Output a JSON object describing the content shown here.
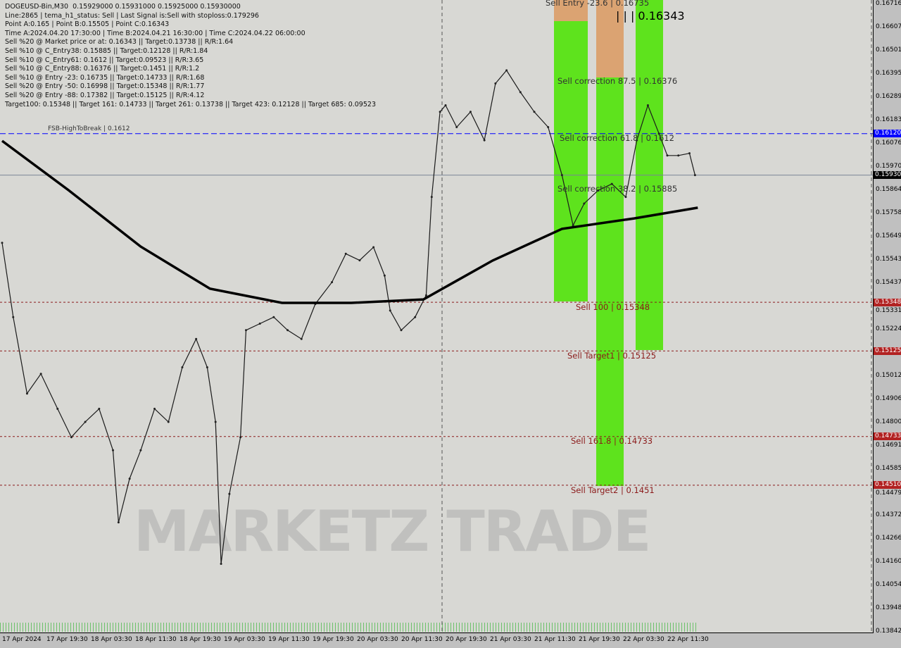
{
  "info_panel": {
    "lines": [
      "DOGEUSD-Bin,M30  0.15929000 0.15931000 0.15925000 0.15930000",
      "Line:2865 | tema_h1_status: Sell | Last Signal is:Sell with stoploss:0.179296",
      "Point A:0.165 | Point B:0.15505 | Point C:0.16343",
      "Time A:2024.04.20 17:30:00 | Time B:2024.04.21 16:30:00 | Time C:2024.04.22 06:00:00",
      "Sell %20 @ Market price or at: 0.16343 || Target:0.13738 || R/R:1.64",
      "Sell %10 @ C_Entry38: 0.15885 || Target:0.12128 || R/R:1.84",
      "Sell %10 @ C_Entry61: 0.1612 || Target:0.09523 || R/R:3.65",
      "Sell %10 @ C_Entry88: 0.16376 || Target:0.1451 || R/R:1.2",
      "Sell %10 @ Entry -23: 0.16735 || Target:0.14733 || R/R:1.68",
      "Sell %20 @ Entry -50: 0.16998 || Target:0.15348 || R/R:1.77",
      "Sell %20 @ Entry -88: 0.17382 || Target:0.15125 || R/R:4.12",
      "Target100: 0.15348 || Target 161: 0.14733 || Target 261: 0.13738 || Target 423: 0.12128 || Target 685: 0.09523"
    ]
  },
  "watermark": "MARKETZ TRADE",
  "colors": {
    "background": "#d8d8d4",
    "zone_green": "#5ee31d",
    "zone_orange": "#dc9a60",
    "level_red": "#8b1a1a",
    "fsb_blue": "#0000ff",
    "ma200": "#000000",
    "price_tag": "#000000",
    "target_tag": "#b22222"
  },
  "chart_data": {
    "type": "line",
    "symbol": "DOGEUSD-Bin",
    "timeframe": "M30",
    "ylim": [
      0.13842,
      0.16716
    ],
    "y_ticks": [
      "0.16716",
      "0.16607",
      "0.16501",
      "0.16395",
      "0.16289",
      "0.16183",
      "0.16076",
      "0.15970",
      "0.15864",
      "0.15758",
      "0.15649",
      "0.15543",
      "0.15437",
      "0.15331",
      "0.15224",
      "0.15012",
      "0.14906",
      "0.14800",
      "0.14691",
      "0.14585",
      "0.14479",
      "0.14372",
      "0.14266",
      "0.14160",
      "0.14054",
      "0.13948",
      "0.13842"
    ],
    "x_ticks": [
      "17 Apr 2024",
      "17 Apr 19:30",
      "18 Apr 03:30",
      "18 Apr 11:30",
      "18 Apr 19:30",
      "19 Apr 03:30",
      "19 Apr 11:30",
      "19 Apr 19:30",
      "20 Apr 03:30",
      "20 Apr 11:30",
      "20 Apr 19:30",
      "21 Apr 03:30",
      "21 Apr 11:30",
      "21 Apr 19:30",
      "22 Apr 03:30",
      "22 Apr 11:30"
    ],
    "series": [
      {
        "key": "price",
        "x": [
          "17 Apr 11:30",
          "17 Apr 13:30",
          "17 Apr 16:00",
          "17 Apr 18:30",
          "17 Apr 21:30",
          "18 Apr 00:00",
          "18 Apr 02:30",
          "18 Apr 05:00",
          "18 Apr 07:30",
          "18 Apr 08:30",
          "18 Apr 10:30",
          "18 Apr 12:30",
          "18 Apr 15:00",
          "18 Apr 17:30",
          "18 Apr 20:00",
          "18 Apr 22:30",
          "19 Apr 00:30",
          "19 Apr 02:00",
          "19 Apr 03:00",
          "19 Apr 04:30",
          "19 Apr 06:30",
          "19 Apr 07:30",
          "19 Apr 10:00",
          "19 Apr 12:30",
          "19 Apr 15:00",
          "19 Apr 17:30",
          "19 Apr 20:00",
          "19 Apr 23:00",
          "20 Apr 01:30",
          "20 Apr 04:00",
          "20 Apr 06:30",
          "20 Apr 08:30",
          "20 Apr 09:30",
          "20 Apr 11:30",
          "20 Apr 14:00",
          "20 Apr 16:00",
          "20 Apr 17:00",
          "20 Apr 18:30",
          "20 Apr 19:30",
          "20 Apr 21:30",
          "21 Apr 00:00",
          "21 Apr 02:30",
          "21 Apr 04:30",
          "21 Apr 06:30",
          "21 Apr 09:00",
          "21 Apr 11:30",
          "21 Apr 14:00",
          "21 Apr 16:30",
          "21 Apr 18:30",
          "21 Apr 20:30",
          "21 Apr 23:00",
          "22 Apr 01:30",
          "22 Apr 04:00",
          "22 Apr 06:00",
          "22 Apr 08:00",
          "22 Apr 10:00",
          "22 Apr 11:30",
          "22 Apr 13:30",
          "22 Apr 15:30",
          "22 Apr 16:30"
        ],
        "y": [
          0.1562,
          0.1528,
          0.1493,
          0.1502,
          0.1486,
          0.1473,
          0.148,
          0.1486,
          0.1467,
          0.1434,
          0.1454,
          0.1467,
          0.1486,
          0.148,
          0.1505,
          0.1518,
          0.1505,
          0.148,
          0.1415,
          0.1447,
          0.1473,
          0.1522,
          0.1525,
          0.1528,
          0.1522,
          0.1518,
          0.1534,
          0.1544,
          0.1557,
          0.1554,
          0.156,
          0.1547,
          0.1531,
          0.1522,
          0.1528,
          0.1538,
          0.1583,
          0.1622,
          0.1625,
          0.1615,
          0.1622,
          0.1609,
          0.1635,
          0.1641,
          0.1631,
          0.1622,
          0.1615,
          0.1593,
          0.157,
          0.158,
          0.1586,
          0.1589,
          0.1583,
          0.1609,
          0.1625,
          0.1612,
          0.1602,
          0.1602,
          0.1603,
          0.1593
        ]
      },
      {
        "key": "ma-slow",
        "x": [
          "17 Apr 11:30",
          "17 Apr 23:30",
          "18 Apr 12:30",
          "19 Apr 01:00",
          "19 Apr 14:00",
          "20 Apr 02:30",
          "20 Apr 15:30",
          "21 Apr 04:00",
          "21 Apr 16:30",
          "22 Apr 05:30",
          "22 Apr 17:00"
        ],
        "y": [
          0.16087,
          0.15861,
          0.15603,
          0.1541,
          0.15345,
          0.15345,
          0.15361,
          0.15539,
          0.15684,
          0.15732,
          0.15781
        ]
      }
    ],
    "levels": [
      {
        "price": 0.1612,
        "label": "FSB-HighToBreak | 0.1612",
        "axis_tag": "0.16120",
        "style": "fsb"
      },
      {
        "price": 0.1593,
        "label": "",
        "axis_tag": "0.15930",
        "style": "current"
      },
      {
        "price": 0.15348,
        "label": "Sell 100 | 0.15348",
        "axis_tag": "0.15348",
        "style": "target"
      },
      {
        "price": 0.15125,
        "label": "Sell Target1 | 0.15125",
        "axis_tag": "0.15125",
        "style": "target"
      },
      {
        "price": 0.14733,
        "label": "Sell 161.8 | 0.14733",
        "axis_tag": "0.14733",
        "style": "target"
      },
      {
        "price": 0.1451,
        "label": "Sell Target2 | 0.1451",
        "axis_tag": "0.14510",
        "style": "target"
      }
    ],
    "zone_labels": {
      "entry": "Sell Entry -23.6 | 0.16735",
      "point_c": "| | | 0.16343",
      "corr875": "Sell correction 87.5 | 0.16376",
      "corr618": "Sell correction 61.8 | 0.1612",
      "corr382": "Sell correction 38.2 | 0.15885"
    }
  }
}
